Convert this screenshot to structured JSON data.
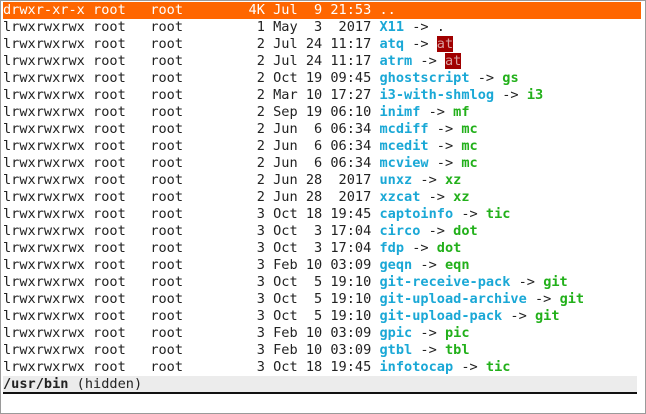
{
  "colors": {
    "selection": "#ff6600",
    "link_name": "#1aa8d6",
    "link_target": "#22b01a",
    "broken_target_bg": "#a00000"
  },
  "entries": [
    {
      "perm": "drwxr-xr-x",
      "user": "root",
      "group": "root",
      "size": "4K",
      "date": "Jul  9 21:53",
      "name": "..",
      "target": "",
      "selected": true
    },
    {
      "perm": "lrwxrwxrwx",
      "user": "root",
      "group": "root",
      "size": "1",
      "date": "May  3  2017",
      "name": "X11",
      "target": ".",
      "kind": "plain"
    },
    {
      "perm": "lrwxrwxrwx",
      "user": "root",
      "group": "root",
      "size": "2",
      "date": "Jul 24 11:17",
      "name": "atq",
      "target": "at",
      "kind": "broken"
    },
    {
      "perm": "lrwxrwxrwx",
      "user": "root",
      "group": "root",
      "size": "2",
      "date": "Jul 24 11:17",
      "name": "atrm",
      "target": "at",
      "kind": "broken"
    },
    {
      "perm": "lrwxrwxrwx",
      "user": "root",
      "group": "root",
      "size": "2",
      "date": "Oct 19 09:45",
      "name": "ghostscript",
      "target": "gs"
    },
    {
      "perm": "lrwxrwxrwx",
      "user": "root",
      "group": "root",
      "size": "2",
      "date": "Mar 10 17:27",
      "name": "i3-with-shmlog",
      "target": "i3"
    },
    {
      "perm": "lrwxrwxrwx",
      "user": "root",
      "group": "root",
      "size": "2",
      "date": "Sep 19 06:10",
      "name": "inimf",
      "target": "mf"
    },
    {
      "perm": "lrwxrwxrwx",
      "user": "root",
      "group": "root",
      "size": "2",
      "date": "Jun  6 06:34",
      "name": "mcdiff",
      "target": "mc"
    },
    {
      "perm": "lrwxrwxrwx",
      "user": "root",
      "group": "root",
      "size": "2",
      "date": "Jun  6 06:34",
      "name": "mcedit",
      "target": "mc"
    },
    {
      "perm": "lrwxrwxrwx",
      "user": "root",
      "group": "root",
      "size": "2",
      "date": "Jun  6 06:34",
      "name": "mcview",
      "target": "mc"
    },
    {
      "perm": "lrwxrwxrwx",
      "user": "root",
      "group": "root",
      "size": "2",
      "date": "Jun 28  2017",
      "name": "unxz",
      "target": "xz"
    },
    {
      "perm": "lrwxrwxrwx",
      "user": "root",
      "group": "root",
      "size": "2",
      "date": "Jun 28  2017",
      "name": "xzcat",
      "target": "xz"
    },
    {
      "perm": "lrwxrwxrwx",
      "user": "root",
      "group": "root",
      "size": "3",
      "date": "Oct 18 19:45",
      "name": "captoinfo",
      "target": "tic"
    },
    {
      "perm": "lrwxrwxrwx",
      "user": "root",
      "group": "root",
      "size": "3",
      "date": "Oct  3 17:04",
      "name": "circo",
      "target": "dot"
    },
    {
      "perm": "lrwxrwxrwx",
      "user": "root",
      "group": "root",
      "size": "3",
      "date": "Oct  3 17:04",
      "name": "fdp",
      "target": "dot"
    },
    {
      "perm": "lrwxrwxrwx",
      "user": "root",
      "group": "root",
      "size": "3",
      "date": "Feb 10 03:09",
      "name": "geqn",
      "target": "eqn"
    },
    {
      "perm": "lrwxrwxrwx",
      "user": "root",
      "group": "root",
      "size": "3",
      "date": "Oct  5 19:10",
      "name": "git-receive-pack",
      "target": "git"
    },
    {
      "perm": "lrwxrwxrwx",
      "user": "root",
      "group": "root",
      "size": "3",
      "date": "Oct  5 19:10",
      "name": "git-upload-archive",
      "target": "git"
    },
    {
      "perm": "lrwxrwxrwx",
      "user": "root",
      "group": "root",
      "size": "3",
      "date": "Oct  5 19:10",
      "name": "git-upload-pack",
      "target": "git"
    },
    {
      "perm": "lrwxrwxrwx",
      "user": "root",
      "group": "root",
      "size": "3",
      "date": "Feb 10 03:09",
      "name": "gpic",
      "target": "pic"
    },
    {
      "perm": "lrwxrwxrwx",
      "user": "root",
      "group": "root",
      "size": "3",
      "date": "Feb 10 03:09",
      "name": "gtbl",
      "target": "tbl"
    },
    {
      "perm": "lrwxrwxrwx",
      "user": "root",
      "group": "root",
      "size": "3",
      "date": "Oct 18 19:45",
      "name": "infotocap",
      "target": "tic"
    }
  ],
  "arrow": " -> ",
  "status": {
    "path": "/usr/bin",
    "note": " (hidden)"
  }
}
